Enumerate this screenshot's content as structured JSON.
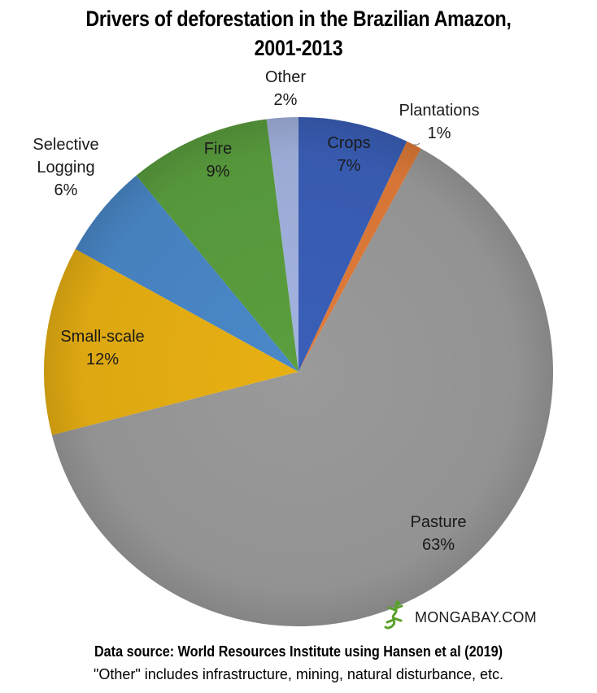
{
  "chart_data": {
    "type": "pie",
    "title_line1": "Drivers of deforestation in the Brazilian Amazon,",
    "title_line2": "2001-2013",
    "slices": [
      {
        "name": "Crops",
        "value": 7,
        "label": "7%",
        "color": "#3a5fb8"
      },
      {
        "name": "Plantations",
        "value": 1,
        "label": "1%",
        "color": "#e07b39"
      },
      {
        "name": "Pasture",
        "value": 63,
        "label": "63%",
        "color": "#9a9a9a"
      },
      {
        "name": "Small-scale",
        "value": 12,
        "label": "12%",
        "color": "#e8b012"
      },
      {
        "name": "Selective Logging",
        "value": 6,
        "label": "6%",
        "color": "#4a88c8"
      },
      {
        "name": "Fire",
        "value": 9,
        "label": "9%",
        "color": "#5a9e3e"
      },
      {
        "name": "Other",
        "value": 2,
        "label": "2%",
        "color": "#a3b3e0"
      }
    ]
  },
  "footer": {
    "logo_text": "MONGABAY.COM",
    "source": "Data source: World Resources Institute using Hansen et al  (2019)",
    "note": "\"Other\" includes infrastructure, mining, natural disturbance, etc."
  }
}
